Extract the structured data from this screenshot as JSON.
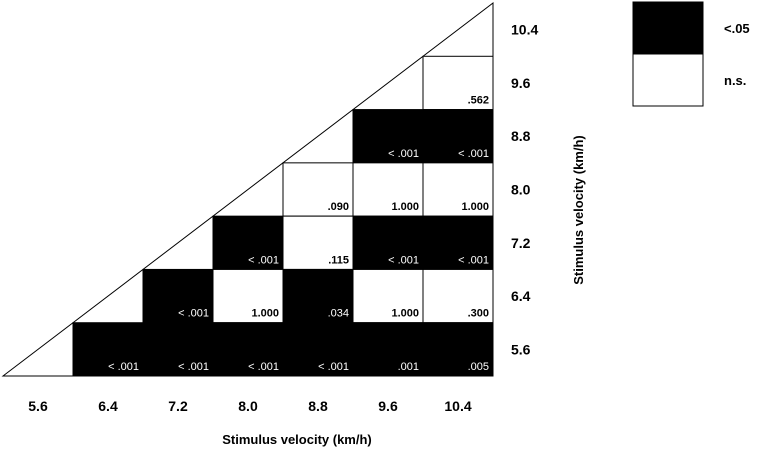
{
  "chart_data": {
    "type": "heatmap",
    "title": "",
    "xlabel": "Stimulus velocity (km/h)",
    "ylabel": "Stimulus velocity (km/h)",
    "x_categories": [
      "5.6",
      "6.4",
      "7.2",
      "8.0",
      "8.8",
      "9.6",
      "10.4"
    ],
    "y_categories": [
      "10.4",
      "9.6",
      "8.8",
      "8.0",
      "7.2",
      "6.4",
      "5.6"
    ],
    "legend": [
      {
        "label": "<.05",
        "color": "#000000"
      },
      {
        "label": "n.s.",
        "color": "#ffffff"
      }
    ],
    "cells": [
      {
        "x": "10.4",
        "y": "9.6",
        "p": ".562",
        "significant": false
      },
      {
        "x": "9.6",
        "y": "8.8",
        "p": "< .001",
        "significant": true
      },
      {
        "x": "10.4",
        "y": "8.8",
        "p": "< .001",
        "significant": true
      },
      {
        "x": "8.8",
        "y": "8.0",
        "p": ".090",
        "significant": false
      },
      {
        "x": "9.6",
        "y": "8.0",
        "p": "1.000",
        "significant": false
      },
      {
        "x": "10.4",
        "y": "8.0",
        "p": "1.000",
        "significant": false
      },
      {
        "x": "8.0",
        "y": "7.2",
        "p": "< .001",
        "significant": true
      },
      {
        "x": "8.8",
        "y": "7.2",
        "p": ".115",
        "significant": false
      },
      {
        "x": "9.6",
        "y": "7.2",
        "p": "< .001",
        "significant": true
      },
      {
        "x": "10.4",
        "y": "7.2",
        "p": "< .001",
        "significant": true
      },
      {
        "x": "7.2",
        "y": "6.4",
        "p": "< .001",
        "significant": true
      },
      {
        "x": "8.0",
        "y": "6.4",
        "p": "1.000",
        "significant": false
      },
      {
        "x": "8.8",
        "y": "6.4",
        "p": ".034",
        "significant": true
      },
      {
        "x": "9.6",
        "y": "6.4",
        "p": "1.000",
        "significant": false
      },
      {
        "x": "10.4",
        "y": "6.4",
        "p": ".300",
        "significant": false
      },
      {
        "x": "6.4",
        "y": "5.6",
        "p": "< .001",
        "significant": true
      },
      {
        "x": "7.2",
        "y": "5.6",
        "p": "< .001",
        "significant": true
      },
      {
        "x": "8.0",
        "y": "5.6",
        "p": "< .001",
        "significant": true
      },
      {
        "x": "8.8",
        "y": "5.6",
        "p": "< .001",
        "significant": true
      },
      {
        "x": "9.6",
        "y": "5.6",
        "p": ".001",
        "significant": true
      },
      {
        "x": "10.4",
        "y": "5.6",
        "p": ".005",
        "significant": true
      }
    ]
  }
}
